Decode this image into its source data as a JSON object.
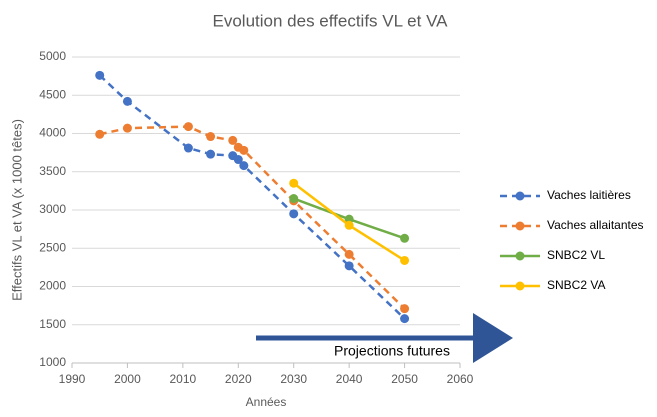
{
  "chart_data": {
    "type": "line",
    "title": "Evolution des effectifs VL et VA",
    "x_label": "Années",
    "y_label": "Effectifs VL et VA (x 1000 têtes)",
    "annotation": "Projections futures",
    "xlim": [
      1990,
      2060
    ],
    "xticks": [
      1990,
      2000,
      2010,
      2020,
      2030,
      2040,
      2050,
      2060
    ],
    "ylim": [
      1000,
      5000
    ],
    "yticks": [
      1000,
      1500,
      2000,
      2500,
      3000,
      3500,
      4000,
      4500,
      5000
    ],
    "grid": true,
    "legend": "right",
    "series": [
      {
        "name": "Vaches laitières",
        "color": "#4472c4",
        "dashed": true,
        "x": [
          1995,
          2000,
          2011,
          2015,
          2019,
          2020,
          2021,
          2030,
          2040,
          2050
        ],
        "values": [
          4760,
          4420,
          3810,
          3730,
          3710,
          3660,
          3580,
          2950,
          2270,
          1580
        ]
      },
      {
        "name": "Vaches allaitantes",
        "color": "#ed7d31",
        "dashed": true,
        "x": [
          1995,
          2000,
          2011,
          2015,
          2019,
          2020,
          2021,
          2030,
          2040,
          2050
        ],
        "values": [
          3990,
          4070,
          4090,
          3960,
          3910,
          3820,
          3780,
          3120,
          2420,
          1710
        ]
      },
      {
        "name": "SNBC2 VL",
        "color": "#70ad47",
        "dashed": false,
        "x": [
          2030,
          2040,
          2050
        ],
        "values": [
          3150,
          2880,
          2630
        ]
      },
      {
        "name": "SNBC2 VA",
        "color": "#ffc000",
        "dashed": false,
        "x": [
          2030,
          2040,
          2050
        ],
        "values": [
          3350,
          2800,
          2340
        ]
      }
    ]
  }
}
